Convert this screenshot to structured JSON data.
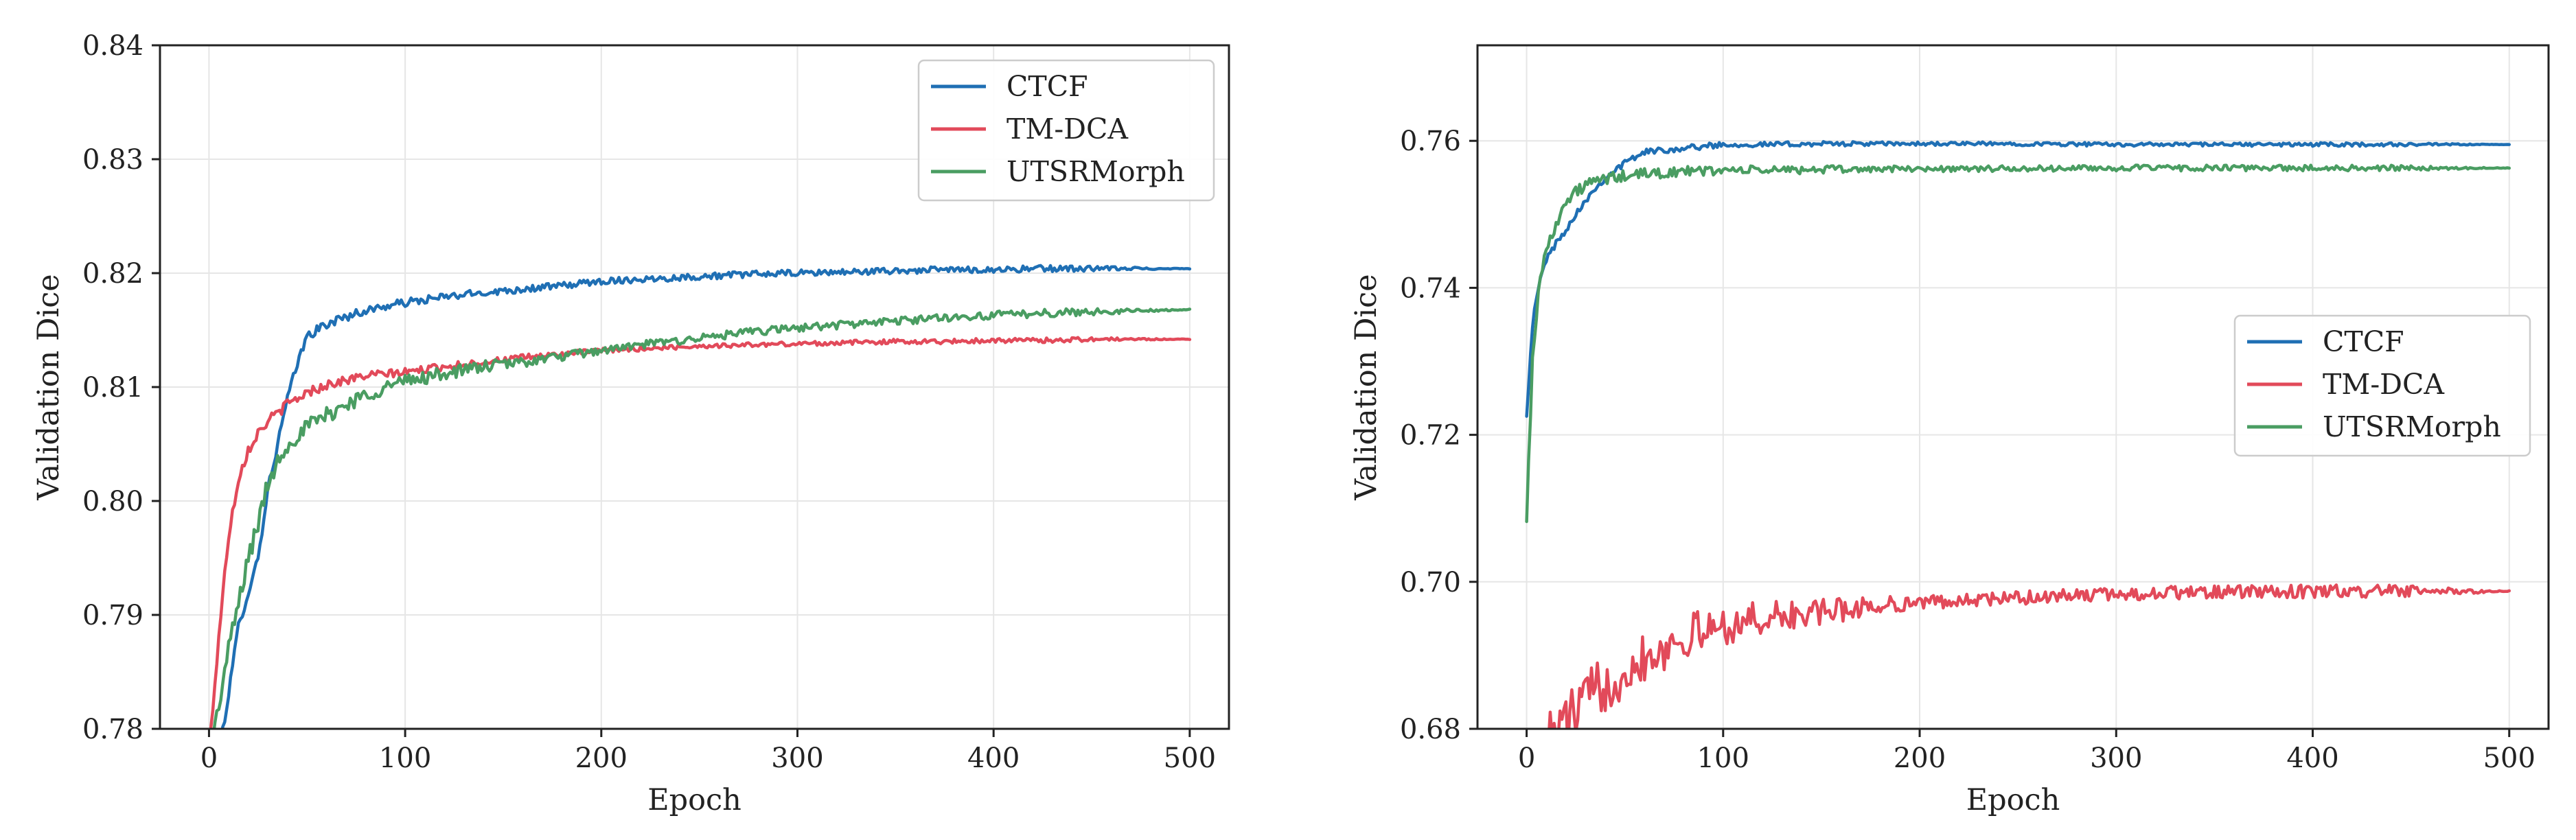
{
  "chart_data": [
    {
      "type": "line",
      "title": "",
      "xlabel": "Epoch",
      "ylabel": "Validation Dice",
      "xlim": [
        -25,
        520
      ],
      "ylim": [
        0.78,
        0.84
      ],
      "xticks": [
        "0",
        "100",
        "200",
        "300",
        "400",
        "500"
      ],
      "yticks": [
        "0.78",
        "0.79",
        "0.80",
        "0.81",
        "0.82",
        "0.83",
        "0.84"
      ],
      "grid": true,
      "legend_position": "top-right",
      "series": [
        {
          "name": "CTCF",
          "color": "#1f6fb4",
          "x": [
            0,
            5,
            10,
            15,
            20,
            25,
            30,
            35,
            40,
            45,
            50,
            60,
            70,
            80,
            90,
            100,
            120,
            140,
            160,
            180,
            200,
            225,
            250,
            275,
            300,
            325,
            350,
            375,
            400,
            425,
            450,
            475,
            500
          ],
          "y": [
            0.772,
            0.778,
            0.783,
            0.789,
            0.792,
            0.795,
            0.801,
            0.805,
            0.809,
            0.812,
            0.8145,
            0.8155,
            0.8162,
            0.8167,
            0.8171,
            0.8174,
            0.8179,
            0.8183,
            0.8186,
            0.8189,
            0.8193,
            0.8195,
            0.8197,
            0.8199,
            0.82,
            0.8201,
            0.8202,
            0.8203,
            0.8203,
            0.8204,
            0.8204,
            0.8204,
            0.8204
          ]
        },
        {
          "name": "TM-DCA",
          "color": "#e24a5a",
          "x": [
            0,
            3,
            6,
            10,
            15,
            20,
            25,
            30,
            40,
            50,
            60,
            80,
            100,
            120,
            140,
            160,
            180,
            200,
            225,
            250,
            275,
            300,
            325,
            350,
            375,
            400,
            425,
            450,
            475,
            500
          ],
          "y": [
            0.778,
            0.784,
            0.79,
            0.797,
            0.802,
            0.8045,
            0.806,
            0.807,
            0.8085,
            0.8095,
            0.8102,
            0.811,
            0.8113,
            0.8118,
            0.8122,
            0.8126,
            0.8129,
            0.8132,
            0.8134,
            0.8136,
            0.8137,
            0.8138,
            0.8139,
            0.814,
            0.814,
            0.8141,
            0.8141,
            0.8142,
            0.8142,
            0.8142
          ]
        },
        {
          "name": "UTSRMorph",
          "color": "#4a9d62",
          "x": [
            0,
            5,
            10,
            15,
            20,
            25,
            30,
            35,
            40,
            50,
            60,
            70,
            80,
            90,
            100,
            120,
            140,
            160,
            180,
            200,
            225,
            250,
            275,
            300,
            325,
            350,
            375,
            400,
            425,
            450,
            475,
            500
          ],
          "y": [
            0.777,
            0.782,
            0.787,
            0.791,
            0.795,
            0.798,
            0.8015,
            0.8035,
            0.805,
            0.8065,
            0.8075,
            0.8085,
            0.8093,
            0.81,
            0.8105,
            0.8112,
            0.8118,
            0.8122,
            0.8127,
            0.8132,
            0.8138,
            0.8143,
            0.8148,
            0.8152,
            0.8155,
            0.8158,
            0.8161,
            0.8163,
            0.8165,
            0.8166,
            0.8167,
            0.8168
          ]
        }
      ]
    },
    {
      "type": "line",
      "title": "",
      "xlabel": "Epoch",
      "ylabel": "Validation Dice",
      "xlim": [
        -25,
        520
      ],
      "ylim": [
        0.68,
        0.773
      ],
      "xticks": [
        "0",
        "100",
        "200",
        "300",
        "400",
        "500"
      ],
      "yticks": [
        "0.68",
        "0.70",
        "0.72",
        "0.74",
        "0.76"
      ],
      "grid": true,
      "legend_position": "center-right",
      "series": [
        {
          "name": "CTCF",
          "color": "#1f6fb4",
          "x": [
            0,
            3,
            6,
            10,
            15,
            20,
            25,
            30,
            40,
            50,
            60,
            80,
            100,
            120,
            150,
            200,
            250,
            300,
            350,
            400,
            450,
            500
          ],
          "y": [
            0.723,
            0.735,
            0.74,
            0.744,
            0.746,
            0.748,
            0.75,
            0.752,
            0.755,
            0.757,
            0.7585,
            0.759,
            0.7595,
            0.7595,
            0.7596,
            0.7596,
            0.7596,
            0.7595,
            0.7595,
            0.7595,
            0.7595,
            0.7595
          ]
        },
        {
          "name": "TM-DCA",
          "color": "#e24a5a",
          "x": [
            10,
            15,
            20,
            25,
            30,
            40,
            50,
            60,
            70,
            80,
            100,
            120,
            140,
            160,
            180,
            200,
            225,
            250,
            275,
            300,
            325,
            350,
            375,
            400,
            425,
            450,
            475,
            500
          ],
          "y": [
            0.678,
            0.68,
            0.681,
            0.682,
            0.684,
            0.686,
            0.688,
            0.69,
            0.691,
            0.6925,
            0.694,
            0.695,
            0.6955,
            0.6962,
            0.6968,
            0.6972,
            0.6975,
            0.6978,
            0.6981,
            0.6983,
            0.6985,
            0.6986,
            0.6986,
            0.6987,
            0.6987,
            0.6987,
            0.6987,
            0.6987
          ]
        },
        {
          "name": "UTSRMorph",
          "color": "#4a9d62",
          "x": [
            0,
            3,
            6,
            10,
            15,
            20,
            25,
            30,
            40,
            50,
            60,
            80,
            100,
            120,
            150,
            200,
            250,
            300,
            350,
            400,
            450,
            500
          ],
          "y": [
            0.709,
            0.73,
            0.74,
            0.745,
            0.749,
            0.7515,
            0.753,
            0.754,
            0.7548,
            0.7552,
            0.7555,
            0.7558,
            0.756,
            0.756,
            0.7561,
            0.7562,
            0.7562,
            0.7563,
            0.7563,
            0.7563,
            0.7563,
            0.7563
          ]
        }
      ]
    }
  ]
}
